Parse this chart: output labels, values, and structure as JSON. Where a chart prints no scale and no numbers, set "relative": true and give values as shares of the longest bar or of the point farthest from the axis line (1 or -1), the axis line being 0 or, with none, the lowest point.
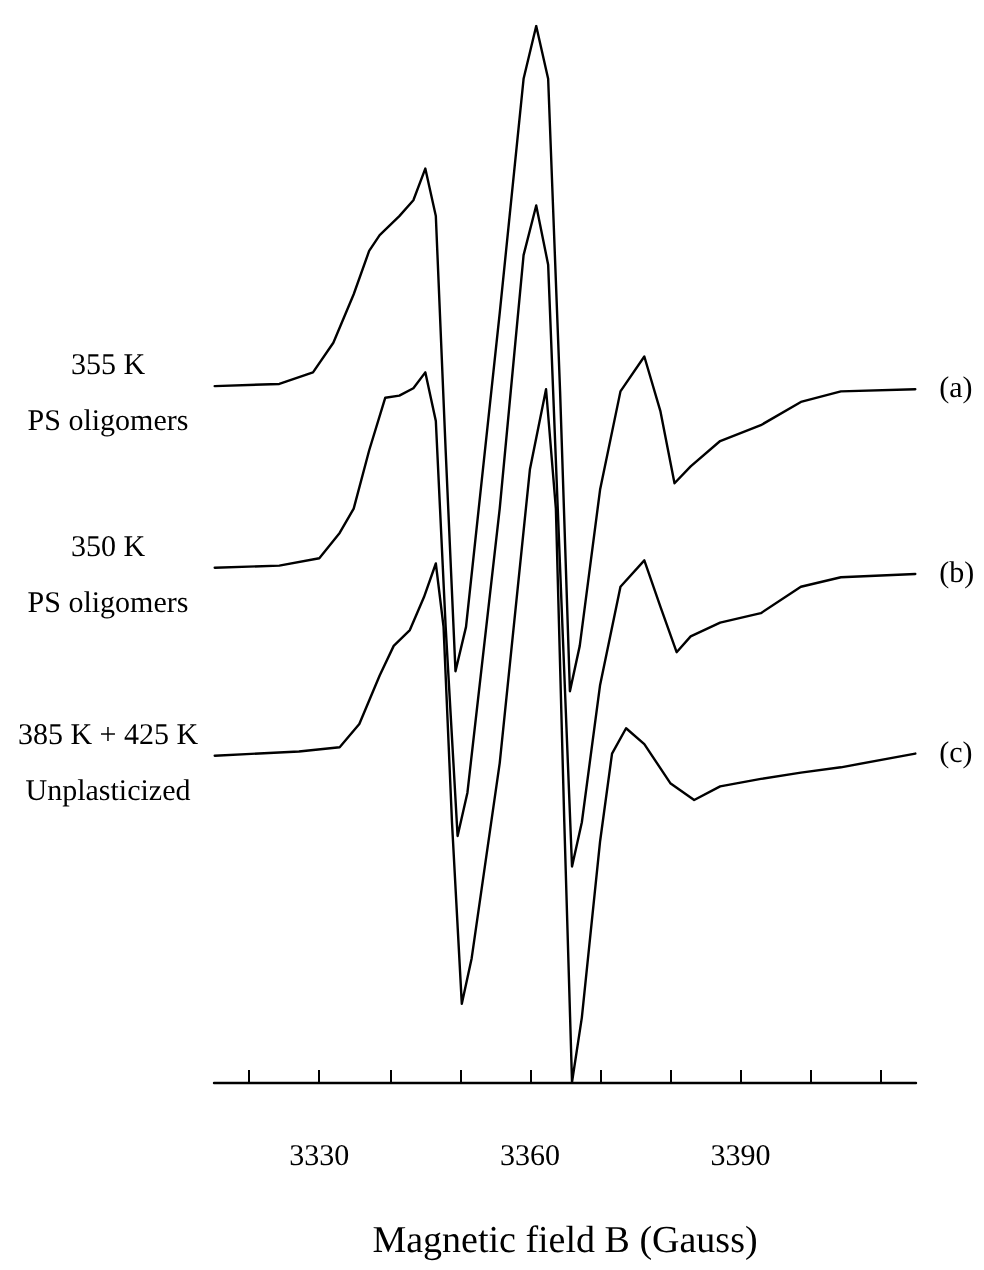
{
  "chart_data": {
    "type": "line",
    "relative": true,
    "xlabel": "Magnetic field B (Gauss)",
    "xlim": [
      3315,
      3415
    ],
    "xticks": [
      {
        "value": 3320,
        "label": null
      },
      3330,
      {
        "value": 3340,
        "label": null
      },
      {
        "value": 3350,
        "label": null
      },
      3360,
      {
        "value": 3370,
        "label": null
      },
      {
        "value": 3380,
        "label": null
      },
      3390,
      {
        "value": 3400,
        "label": null
      },
      {
        "value": 3410,
        "label": null
      }
    ],
    "tick_labels": "x",
    "grid": false,
    "legend": false,
    "marker": "none",
    "line_style": "solid",
    "annotations": [
      "355 K\nPS oligomers",
      "350 K\nPS oligomers",
      "385 K + 425 K\nUnplasticized"
    ],
    "series": [
      {
        "name": "(a)",
        "color": "#000000",
        "x": [
          3315.1,
          3324.3,
          3329.1,
          3332,
          3334.9,
          3337.1,
          3338.6,
          3341.4,
          3343.4,
          3345.1,
          3346.6,
          3348,
          3349.4,
          3350.9,
          3355.7,
          3359.1,
          3360.9,
          3362.6,
          3364.3,
          3365.7,
          3367.1,
          3370,
          3372.9,
          3376.3,
          3378.6,
          3380.6,
          3382.9,
          3387.1,
          3392.9,
          3398.6,
          3404.3,
          3414.9
        ],
        "values": [
          0.659,
          0.661,
          0.672,
          0.7,
          0.746,
          0.787,
          0.802,
          0.82,
          0.835,
          0.865,
          0.82,
          0.598,
          0.389,
          0.431,
          0.728,
          0.95,
          1,
          0.95,
          0.654,
          0.37,
          0.413,
          0.561,
          0.654,
          0.687,
          0.635,
          0.567,
          0.583,
          0.607,
          0.622,
          0.644,
          0.654,
          0.656
        ]
      },
      {
        "name": "(b)",
        "color": "#000000",
        "x": [
          3315.1,
          3324.3,
          3330,
          3332.9,
          3334.9,
          3337.1,
          3339.4,
          3341.4,
          3343.4,
          3345.1,
          3346.6,
          3348,
          3349.7,
          3351.1,
          3355.7,
          3359.1,
          3360.9,
          3362.6,
          3364.3,
          3366,
          3367.4,
          3370,
          3372.9,
          3376.3,
          3378.6,
          3380.9,
          3382.9,
          3387.1,
          3392.9,
          3398.6,
          3404.3,
          3414.9
        ],
        "values": [
          0.487,
          0.489,
          0.496,
          0.52,
          0.543,
          0.598,
          0.648,
          0.65,
          0.657,
          0.672,
          0.626,
          0.431,
          0.233,
          0.274,
          0.543,
          0.783,
          0.83,
          0.774,
          0.487,
          0.204,
          0.246,
          0.376,
          0.469,
          0.494,
          0.45,
          0.407,
          0.422,
          0.435,
          0.444,
          0.469,
          0.478,
          0.481
        ]
      },
      {
        "name": "(c)",
        "color": "#000000",
        "x": [
          3315.1,
          3327.1,
          3332.9,
          3335.7,
          3338.6,
          3340.6,
          3342.9,
          3344.9,
          3346.6,
          3347.7,
          3348.9,
          3350.3,
          3351.7,
          3355.7,
          3360,
          3362.3,
          3363.7,
          3364.9,
          3366,
          3367.4,
          3370,
          3371.7,
          3373.7,
          3376.3,
          3380,
          3383.4,
          3387.1,
          3392.9,
          3398.6,
          3404.3,
          3414.9
        ],
        "values": [
          0.309,
          0.313,
          0.317,
          0.339,
          0.385,
          0.413,
          0.428,
          0.459,
          0.491,
          0.431,
          0.246,
          0.074,
          0.117,
          0.302,
          0.58,
          0.656,
          0.543,
          0.246,
          0,
          0.061,
          0.228,
          0.311,
          0.335,
          0.32,
          0.283,
          0.267,
          0.28,
          0.287,
          0.293,
          0.298,
          0.311
        ]
      }
    ]
  }
}
